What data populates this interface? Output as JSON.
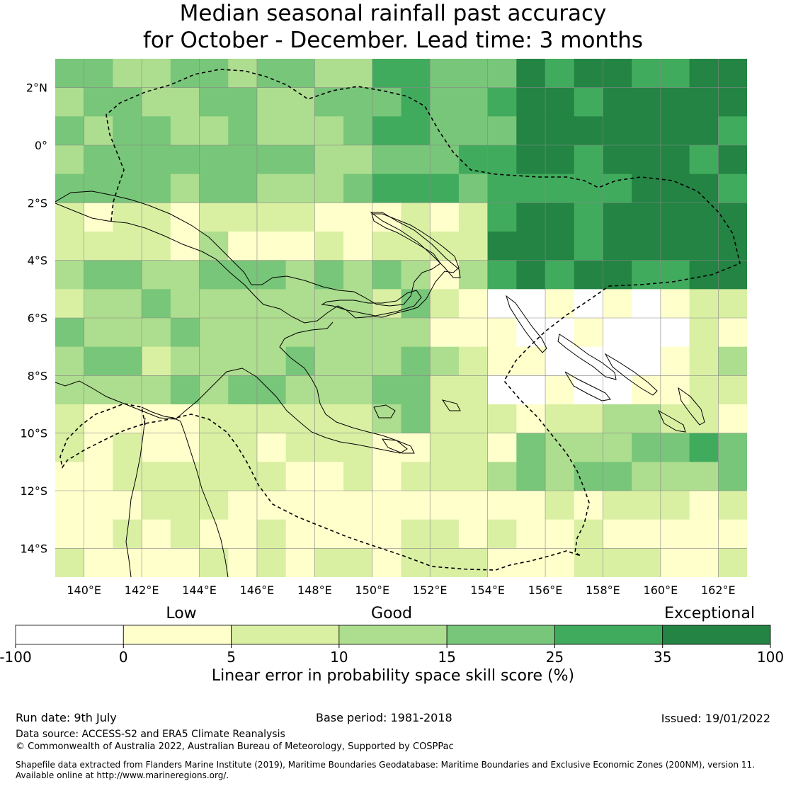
{
  "title": {
    "line1": "Median seasonal rainfall past accuracy",
    "line2": "for October - December. Lead time: 3 months"
  },
  "map": {
    "lon_ticks": [
      "140°E",
      "142°E",
      "144°E",
      "146°E",
      "148°E",
      "150°E",
      "152°E",
      "154°E",
      "156°E",
      "158°E",
      "160°E",
      "162°E"
    ],
    "lat_ticks": [
      "2°N",
      "0°",
      "2°S",
      "4°S",
      "6°S",
      "8°S",
      "10°S",
      "12°S",
      "14°S"
    ],
    "lon_range": [
      139,
      163
    ],
    "lat_range": [
      -15,
      3
    ],
    "grid": true
  },
  "colorbar": {
    "categories": [
      "Low",
      "Good",
      "Exceptional"
    ],
    "tick_labels": [
      "-100",
      "0",
      "5",
      "10",
      "15",
      "25",
      "35",
      "100"
    ],
    "colors": [
      "#ffffff",
      "#ffffcc",
      "#d9f0a3",
      "#addd8e",
      "#78c679",
      "#41ab5d",
      "#238443"
    ],
    "label": "Linear error in probability space skill score (%)"
  },
  "footer": {
    "run_date": "Run date: 9th July",
    "base_period": "Base period: 1981-2018",
    "issued": "Issued: 19/01/2022",
    "data_source": "Data source: ACCESS-S2 and ERA5 Climate Reanalysis",
    "copyright": "© Commonwealth of Australia 2022, Australian Bureau of Meteorology, Supported by COSPPac",
    "shapefile_line1": "Shapefile data extracted from Flanders Marine Institute (2019), Maritime Boundaries Geodatabase: Maritime Boundaries and Exclusive Economic Zones (200NM), version 11.",
    "shapefile_line2": "Available online at http://www.marineregions.org/."
  }
}
